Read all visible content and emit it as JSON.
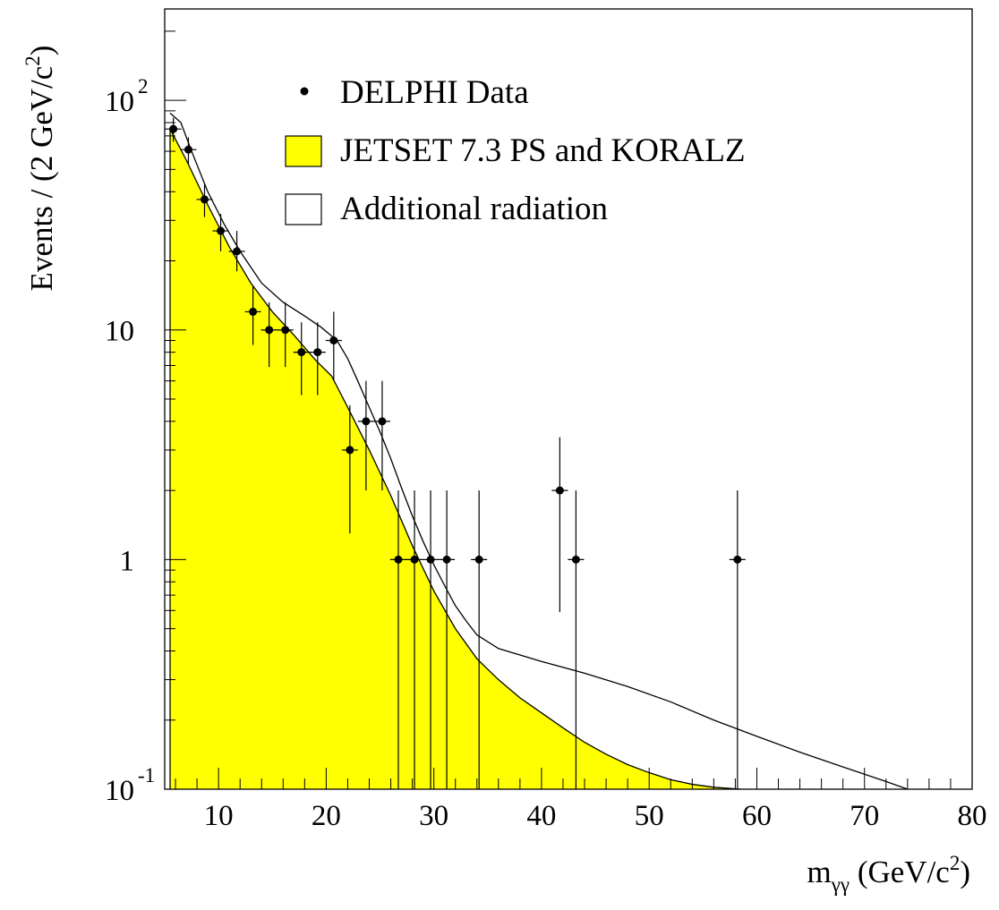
{
  "chart_data": {
    "type": "line",
    "xlabel": {
      "main": "m",
      "sub": "γγ",
      "unit_pre": " (GeV/c",
      "unit_sup": "2",
      "unit_post": ")"
    },
    "ylabel": {
      "pre": "Events / (2 GeV/c",
      "sup": "2",
      "post": ")"
    },
    "xlim": [
      5,
      80
    ],
    "ylim": [
      0.1,
      250
    ],
    "yscale": "log",
    "grid": false,
    "legend_position": "top-center",
    "x_ticks": [
      {
        "value": 10,
        "label": "10"
      },
      {
        "value": 20,
        "label": "20"
      },
      {
        "value": 30,
        "label": "30"
      },
      {
        "value": 40,
        "label": "40"
      },
      {
        "value": 50,
        "label": "50"
      },
      {
        "value": 60,
        "label": "60"
      },
      {
        "value": 70,
        "label": "70"
      },
      {
        "value": 80,
        "label": "80"
      }
    ],
    "y_ticks": [
      {
        "value": 100,
        "base": "10",
        "exp": "2"
      },
      {
        "value": 10,
        "base": "10",
        "exp": ""
      },
      {
        "value": 1,
        "base": "1",
        "exp": ""
      },
      {
        "value": 0.1,
        "base": "10",
        "exp": "-1"
      }
    ],
    "legend": [
      {
        "label": "DELPHI Data",
        "marker": "dot"
      },
      {
        "label": "JETSET 7.3 PS and KORALZ",
        "marker": "filled-box"
      },
      {
        "label": "Additional radiation",
        "marker": "open-box"
      }
    ],
    "series": [
      {
        "name": "DELPHI Data",
        "kind": "points",
        "x_halfwidth": 0.75,
        "points": [
          {
            "x": 5.8,
            "y": 75,
            "lo": 66,
            "hi": 84
          },
          {
            "x": 7.2,
            "y": 61,
            "lo": 53,
            "hi": 69
          },
          {
            "x": 8.7,
            "y": 37,
            "lo": 31,
            "hi": 43
          },
          {
            "x": 10.2,
            "y": 27,
            "lo": 22,
            "hi": 32
          },
          {
            "x": 11.7,
            "y": 22,
            "lo": 18,
            "hi": 27
          },
          {
            "x": 13.2,
            "y": 12,
            "lo": 8.6,
            "hi": 15.5
          },
          {
            "x": 14.7,
            "y": 10,
            "lo": 6.9,
            "hi": 13.2
          },
          {
            "x": 16.2,
            "y": 10,
            "lo": 6.9,
            "hi": 13.2
          },
          {
            "x": 17.7,
            "y": 8,
            "lo": 5.2,
            "hi": 10.8
          },
          {
            "x": 19.2,
            "y": 8,
            "lo": 5.2,
            "hi": 10.8
          },
          {
            "x": 20.7,
            "y": 9,
            "lo": 6.0,
            "hi": 12.0
          },
          {
            "x": 22.2,
            "y": 3,
            "lo": 1.3,
            "hi": 4.7
          },
          {
            "x": 23.7,
            "y": 4,
            "lo": 2.0,
            "hi": 6.0
          },
          {
            "x": 25.2,
            "y": 4,
            "lo": 2.0,
            "hi": 6.0
          },
          {
            "x": 26.7,
            "y": 1,
            "lo": 0.1,
            "hi": 2.0
          },
          {
            "x": 28.2,
            "y": 1,
            "lo": 0.1,
            "hi": 2.0
          },
          {
            "x": 29.7,
            "y": 1,
            "lo": 0.1,
            "hi": 2.0
          },
          {
            "x": 31.2,
            "y": 1,
            "lo": 0.1,
            "hi": 2.0
          },
          {
            "x": 34.2,
            "y": 1,
            "lo": 0.1,
            "hi": 2.0
          },
          {
            "x": 41.7,
            "y": 2,
            "lo": 0.59,
            "hi": 3.41
          },
          {
            "x": 43.2,
            "y": 1,
            "lo": 0.1,
            "hi": 2.0
          },
          {
            "x": 58.2,
            "y": 1,
            "lo": 0.1,
            "hi": 2.0
          }
        ]
      },
      {
        "name": "JETSET 7.3 PS and KORALZ",
        "kind": "area",
        "color": "#ffff00",
        "x": [
          5.5,
          7,
          9,
          11,
          13,
          15,
          17,
          19,
          20.5,
          22,
          24,
          26,
          28,
          30,
          32,
          34,
          36,
          38,
          40,
          42,
          44,
          46,
          48,
          50,
          52,
          54,
          56,
          58.5
        ],
        "y": [
          75,
          55,
          35,
          23,
          16,
          12,
          9.5,
          7.4,
          6.3,
          4.6,
          3.0,
          1.9,
          1.15,
          0.73,
          0.5,
          0.37,
          0.3,
          0.25,
          0.215,
          0.185,
          0.16,
          0.142,
          0.128,
          0.118,
          0.11,
          0.105,
          0.102,
          0.1
        ]
      },
      {
        "name": "Additional radiation",
        "kind": "line",
        "x": [
          5.5,
          6.5,
          7.5,
          9,
          10.5,
          12,
          14,
          16,
          18,
          19.5,
          21,
          22,
          23,
          24,
          25,
          26,
          27,
          28,
          29,
          30,
          31,
          32,
          33,
          34,
          36,
          40,
          44,
          48,
          52,
          56,
          60,
          64,
          68,
          72,
          74
        ],
        "y": [
          88,
          80,
          60,
          40,
          29,
          22,
          16,
          13.2,
          11.5,
          10.3,
          9.0,
          7.5,
          5.9,
          4.6,
          3.6,
          2.75,
          2.05,
          1.55,
          1.2,
          0.95,
          0.77,
          0.63,
          0.54,
          0.47,
          0.41,
          0.36,
          0.32,
          0.28,
          0.24,
          0.2,
          0.17,
          0.145,
          0.125,
          0.108,
          0.1
        ]
      }
    ]
  }
}
